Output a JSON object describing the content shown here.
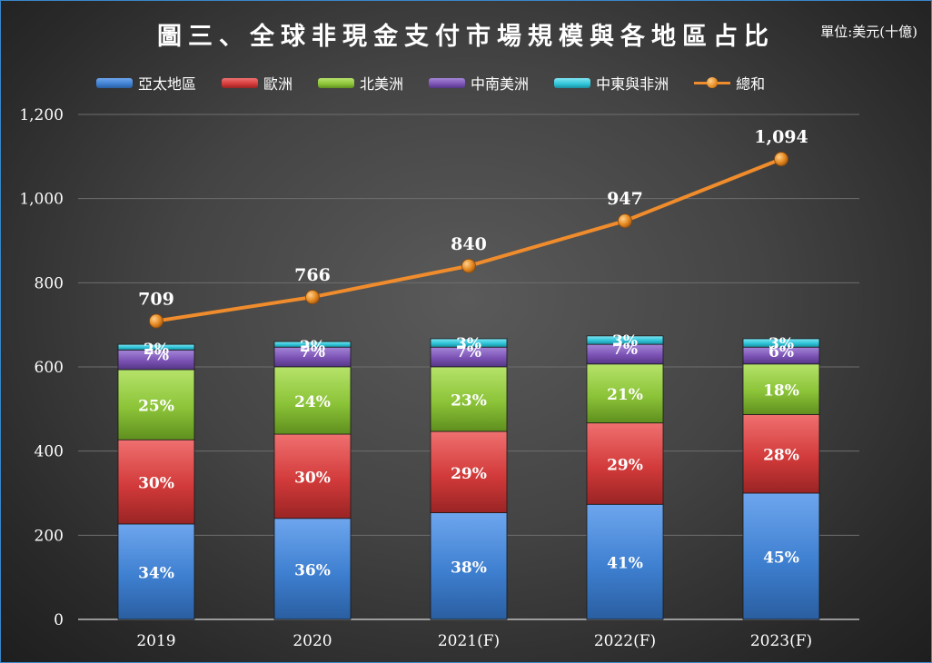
{
  "title": "圖三、全球非現金支付市場規模與各地區占比",
  "unit_label": "單位:美元(十億)",
  "colors": {
    "asia": "#3e7fd0",
    "europe": "#d23a3a",
    "north_america": "#8bc338",
    "latin_america": "#7b52b4",
    "mea": "#2fc4d8",
    "total": "#f08c2c"
  },
  "chart_data": {
    "type": "bar",
    "stacked": true,
    "categories": [
      "2019",
      "2020",
      "2021(F)",
      "2022(F)",
      "2023(F)"
    ],
    "bar_heights": [
      667,
      667,
      667,
      667,
      667
    ],
    "series": [
      {
        "name": "亞太地區",
        "color_key": "asia",
        "percent": [
          34,
          36,
          38,
          41,
          45
        ],
        "labels": [
          "34%",
          "36%",
          "38%",
          "41%",
          "45%"
        ]
      },
      {
        "name": "歐洲",
        "color_key": "europe",
        "percent": [
          30,
          30,
          29,
          29,
          28
        ],
        "labels": [
          "30%",
          "30%",
          "29%",
          "29%",
          "28%"
        ]
      },
      {
        "name": "北美洲",
        "color_key": "north_america",
        "percent": [
          25,
          24,
          23,
          21,
          18
        ],
        "labels": [
          "25%",
          "24%",
          "23%",
          "21%",
          "18%"
        ]
      },
      {
        "name": "中南美洲",
        "color_key": "latin_america",
        "percent": [
          7,
          7,
          7,
          7,
          6
        ],
        "labels": [
          "7%",
          "7%",
          "7%",
          "7%",
          "6%"
        ]
      },
      {
        "name": "中東與非洲",
        "color_key": "mea",
        "percent": [
          2,
          2,
          3,
          3,
          3
        ],
        "labels": [
          "2%",
          "2%",
          "3%",
          "3%",
          "3%"
        ]
      }
    ],
    "line_series": {
      "name": "總和",
      "color_key": "total",
      "values": [
        709,
        766,
        840,
        947,
        1094
      ],
      "labels": [
        "709",
        "766",
        "840",
        "947",
        "1,094"
      ]
    },
    "ylim": [
      0,
      1200
    ],
    "yticks": [
      0,
      200,
      400,
      600,
      800,
      1000,
      1200
    ],
    "ytick_labels": [
      "0",
      "200",
      "400",
      "600",
      "800",
      "1,000",
      "1,200"
    ],
    "grid": true,
    "legend_position": "top"
  }
}
